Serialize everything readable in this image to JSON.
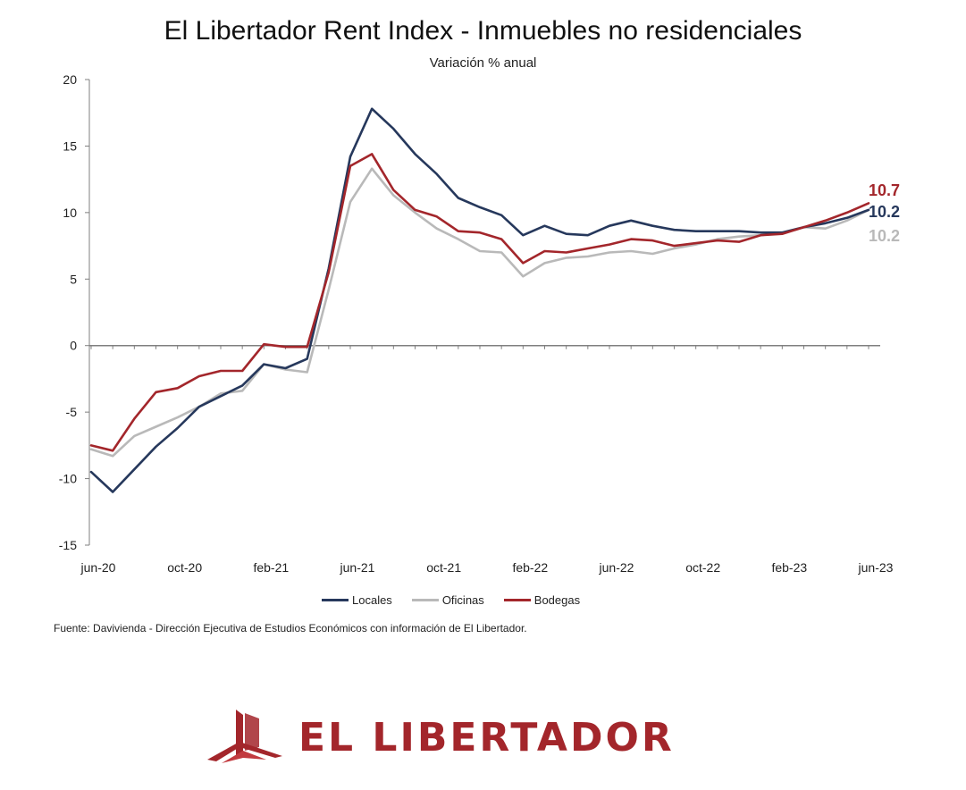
{
  "colors": {
    "locales": "#26385c",
    "oficinas": "#b9b9b9",
    "bodegas": "#a3262b",
    "axis": "#7f7f7f",
    "brand": "#a3262b"
  },
  "chart_data": {
    "type": "line",
    "title": "El Libertador Rent Index - Inmuebles no residenciales",
    "subtitle": "Variación % anual",
    "x": [
      "jun-20",
      "jul-20",
      "ago-20",
      "sep-20",
      "oct-20",
      "nov-20",
      "dic-20",
      "ene-21",
      "feb-21",
      "mar-21",
      "abr-21",
      "may-21",
      "jun-21",
      "jul-21",
      "ago-21",
      "sep-21",
      "oct-21",
      "nov-21",
      "dic-21",
      "ene-22",
      "feb-22",
      "mar-22",
      "abr-22",
      "may-22",
      "jun-22",
      "jul-22",
      "ago-22",
      "sep-22",
      "oct-22",
      "nov-22",
      "dic-22",
      "ene-23",
      "feb-23",
      "mar-23",
      "abr-23",
      "may-23",
      "jun-23"
    ],
    "xtick_labels": [
      "jun-20",
      "oct-20",
      "feb-21",
      "jun-21",
      "oct-21",
      "feb-22",
      "jun-22",
      "oct-22",
      "feb-23",
      "jun-23"
    ],
    "ylim": [
      -15,
      20
    ],
    "yticks": [
      -15,
      -10,
      -5,
      0,
      5,
      10,
      15,
      20
    ],
    "grid": false,
    "legend_position": "bottom",
    "series": [
      {
        "name": "Locales",
        "color_key": "locales",
        "values": [
          -9.5,
          -11,
          -9.3,
          -7.6,
          -6.2,
          -4.6,
          -3.8,
          -3.0,
          -1.4,
          -1.7,
          -1.0,
          5.8,
          14.2,
          17.8,
          16.3,
          14.4,
          12.9,
          11.1,
          10.4,
          9.8,
          8.3,
          9.0,
          8.4,
          8.3,
          9.0,
          9.4,
          9.0,
          8.7,
          8.6,
          8.6,
          8.6,
          8.5,
          8.5,
          8.9,
          9.2,
          9.6,
          10.2
        ]
      },
      {
        "name": "Oficinas",
        "color_key": "oficinas",
        "values": [
          -7.8,
          -8.3,
          -6.8,
          -6.1,
          -5.4,
          -4.6,
          -3.6,
          -3.4,
          -1.4,
          -1.8,
          -2.0,
          4.2,
          10.8,
          13.3,
          11.3,
          10.0,
          8.8,
          8.0,
          7.1,
          7.0,
          5.2,
          6.2,
          6.6,
          6.7,
          7.0,
          7.1,
          6.9,
          7.3,
          7.6,
          8.0,
          8.2,
          8.3,
          8.5,
          8.9,
          8.8,
          9.4,
          10.2
        ]
      },
      {
        "name": "Bodegas",
        "color_key": "bodegas",
        "values": [
          -7.5,
          -7.9,
          -5.5,
          -3.5,
          -3.2,
          -2.3,
          -1.9,
          -1.9,
          0.1,
          -0.1,
          -0.1,
          5.5,
          13.5,
          14.4,
          11.7,
          10.2,
          9.7,
          8.6,
          8.5,
          8.0,
          6.2,
          7.1,
          7.0,
          7.3,
          7.6,
          8.0,
          7.9,
          7.5,
          7.7,
          7.9,
          7.8,
          8.3,
          8.4,
          8.9,
          9.4,
          10.0,
          10.7
        ]
      }
    ],
    "end_labels": [
      {
        "series": "Bodegas",
        "text": "10.7"
      },
      {
        "series": "Locales",
        "text": "10.2"
      },
      {
        "series": "Oficinas",
        "text": "10.2"
      }
    ]
  },
  "legend": [
    {
      "label": "Locales",
      "color_key": "locales"
    },
    {
      "label": "Oficinas",
      "color_key": "oficinas"
    },
    {
      "label": "Bodegas",
      "color_key": "bodegas"
    }
  ],
  "source": "Fuente: Davivienda - Dirección Ejecutiva de Estudios Económicos con información de El Libertador.",
  "logo": {
    "text": "EL LIBERTADOR",
    "icon": "building-house-logo-icon"
  }
}
